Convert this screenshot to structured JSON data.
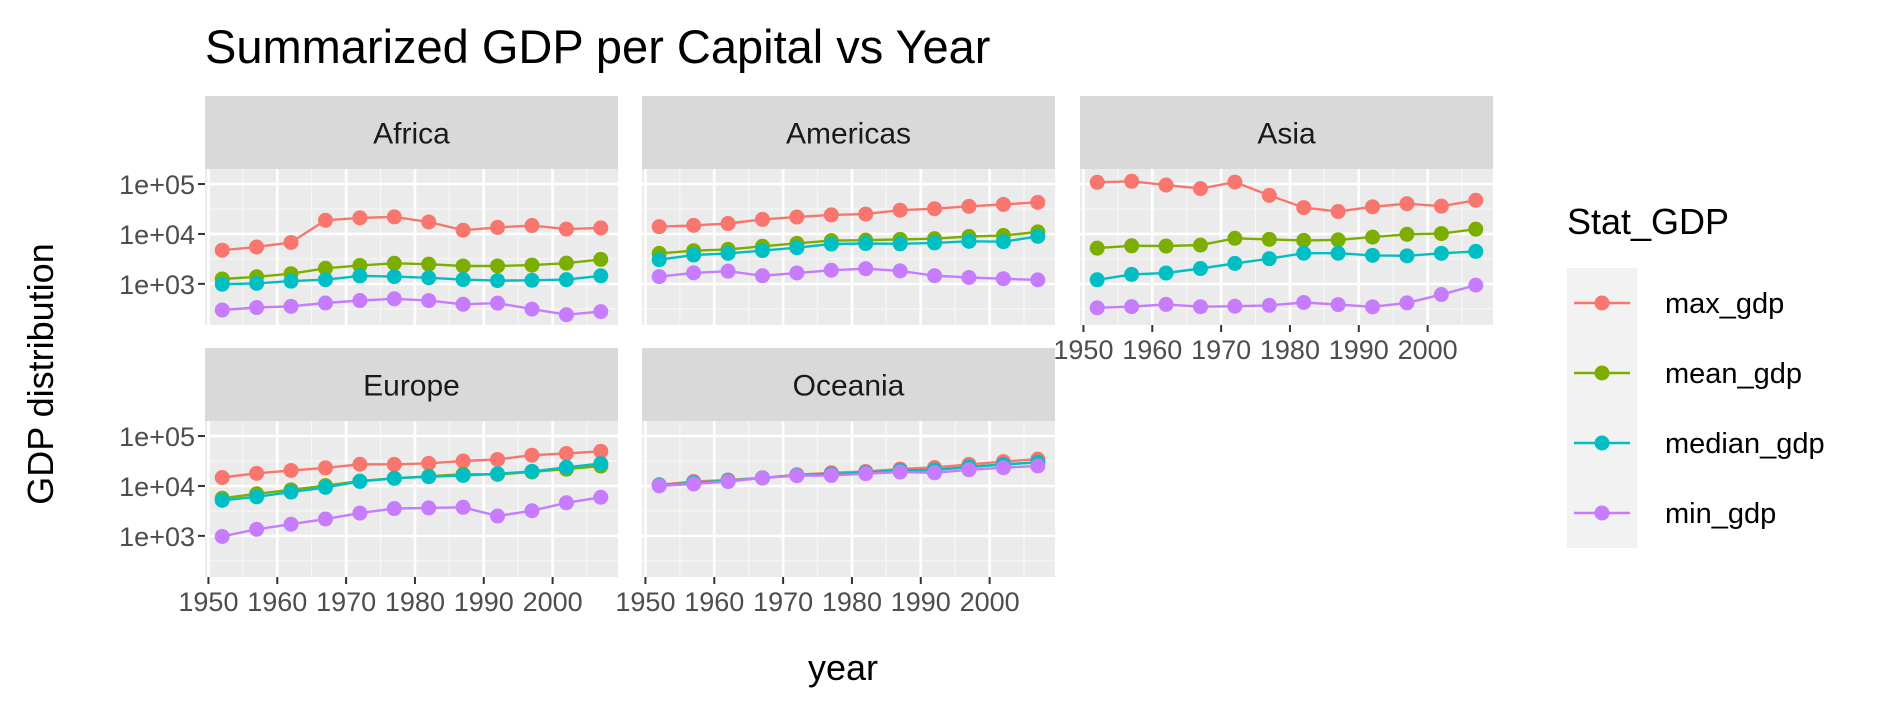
{
  "chart_data": {
    "type": "line",
    "title": "Summarized GDP per Capital vs Year",
    "xlabel": "year",
    "ylabel": "GDP distribution",
    "x_scale": "linear",
    "y_scale": "log10",
    "xlim": [
      1949.5,
      2009.5
    ],
    "ylim": [
      150,
      200000
    ],
    "x_ticks": [
      1950,
      1960,
      1970,
      1980,
      1990,
      2000
    ],
    "x_tick_labels": [
      "1950",
      "1960",
      "1970",
      "1980",
      "1990",
      "2000"
    ],
    "y_ticks": [
      1000,
      10000,
      100000
    ],
    "y_tick_labels": [
      "1e+03",
      "1e+04",
      "1e+05"
    ],
    "grid": true,
    "legend": {
      "title": "Stat_GDP",
      "position": "right",
      "entries": [
        "max_gdp",
        "mean_gdp",
        "median_gdp",
        "min_gdp"
      ]
    },
    "colors": {
      "max_gdp": "#F8766D",
      "mean_gdp": "#7CAE00",
      "median_gdp": "#00BFC4",
      "min_gdp": "#C77CFF"
    },
    "years": [
      1952,
      1957,
      1962,
      1967,
      1972,
      1977,
      1982,
      1987,
      1992,
      1997,
      2002,
      2007
    ],
    "panels": [
      {
        "name": "Africa",
        "series": [
          {
            "name": "max_gdp",
            "values": [
              4725,
              5487,
              6757,
              18773,
              21011,
              21951,
              17364,
              11864,
              13522,
              14723,
              12522,
              13206
            ]
          },
          {
            "name": "mean_gdp",
            "values": [
              1253,
              1385,
              1598,
              2050,
              2340,
              2586,
              2482,
              2283,
              2282,
              2379,
              2599,
              3089
            ]
          },
          {
            "name": "median_gdp",
            "values": [
              987,
              1024,
              1134,
              1210,
              1443,
              1400,
              1324,
              1220,
              1162,
              1180,
              1215,
              1452
            ]
          },
          {
            "name": "min_gdp",
            "values": [
              299,
              336,
              355,
              413,
              464,
              502,
              462,
              390,
              411,
              312,
              241,
              278
            ]
          }
        ]
      },
      {
        "name": "Americas",
        "series": [
          {
            "name": "max_gdp",
            "values": [
              13990,
              14847,
              16173,
              19530,
              21806,
              24073,
              25010,
              29884,
              32004,
              35767,
              39097,
              42952
            ]
          },
          {
            "name": "mean_gdp",
            "values": [
              4079,
              4616,
              4901,
              5668,
              6491,
              7352,
              7507,
              7793,
              8045,
              8889,
              9288,
              11003
            ]
          },
          {
            "name": "median_gdp",
            "values": [
              3048,
              3781,
              4086,
              4643,
              5305,
              6281,
              6434,
              6360,
              6618,
              7114,
              6994,
              8948
            ]
          },
          {
            "name": "min_gdp",
            "values": [
              1398,
              1662,
              1797,
              1452,
              1654,
              1874,
              2011,
              1823,
              1456,
              1342,
              1270,
              1202
            ]
          }
        ]
      },
      {
        "name": "Asia",
        "series": [
          {
            "name": "max_gdp",
            "values": [
              108382,
              113523,
              95458,
              80895,
              109348,
              59265,
              33693,
              28118,
              34933,
              40300,
              36023,
              47307
            ]
          },
          {
            "name": "mean_gdp",
            "values": [
              5195,
              5788,
              5729,
              5971,
              8187,
              7791,
              7434,
              7608,
              8640,
              9834,
              10174,
              12473
            ]
          },
          {
            "name": "median_gdp",
            "values": [
              1207,
              1548,
              1650,
              2029,
              2571,
              3196,
              4107,
              4106,
              3726,
              3645,
              4091,
              4471
            ]
          },
          {
            "name": "min_gdp",
            "values": [
              331,
              350,
              388,
              349,
              357,
              371,
              424,
              385,
              347,
              415,
              611,
              944
            ]
          }
        ]
      },
      {
        "name": "Europe",
        "series": [
          {
            "name": "max_gdp",
            "values": [
              14734,
              17909,
              20431,
              22966,
              27195,
              26982,
              28398,
              31541,
              33966,
              41283,
              44684,
              49357
            ]
          },
          {
            "name": "mean_gdp",
            "values": [
              5661,
              6963,
              8365,
              10143,
              12480,
              14284,
              15618,
              17214,
              17062,
              19077,
              21712,
              25054
            ]
          },
          {
            "name": "median_gdp",
            "values": [
              5142,
              6067,
              7546,
              9366,
              12326,
              14226,
              15322,
              16216,
              17550,
              19596,
              23674,
              28054
            ]
          },
          {
            "name": "min_gdp",
            "values": [
              974,
              1354,
              1710,
              2172,
              2860,
              3528,
              3631,
              3739,
              2497,
              3193,
              4604,
              5937
            ]
          }
        ]
      },
      {
        "name": "Oceania",
        "series": [
          {
            "name": "max_gdp",
            "values": [
              10557,
              12247,
              13176,
              14526,
              16789,
              18334,
              19477,
              21889,
              23425,
              26998,
              30688,
              34435
            ]
          },
          {
            "name": "mean_gdp",
            "values": [
              10298,
              11599,
              12696,
              14496,
              16417,
              17284,
              18555,
              20448,
              20894,
              24024,
              26939,
              29810
            ]
          },
          {
            "name": "median_gdp",
            "values": [
              10298,
              11599,
              12696,
              14496,
              16417,
              17284,
              18555,
              20448,
              20894,
              24024,
              26939,
              29810
            ]
          },
          {
            "name": "min_gdp",
            "values": [
              10040,
              10950,
              12217,
              14464,
              16046,
              16234,
              17632,
              19007,
              18364,
              21050,
              23190,
              25185
            ]
          }
        ]
      }
    ]
  }
}
